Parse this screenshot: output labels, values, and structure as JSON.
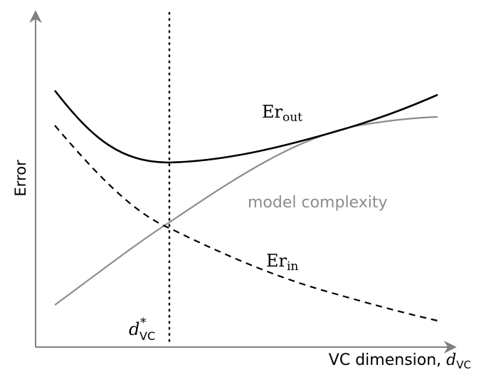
{
  "axes": {
    "y_label": "Error",
    "x_label_text": "VC dimension, ",
    "x_label_var": "d",
    "x_label_sub": "VC"
  },
  "curves": {
    "out_label_base": "Er",
    "out_label_sub": "out",
    "in_label_base": "Er",
    "in_label_sub": "in",
    "complexity_label": "model complexity"
  },
  "marker": {
    "var": "d",
    "sup": "*",
    "sub": "VC"
  },
  "colors": {
    "axis": "#808080",
    "out_curve": "#000000",
    "in_curve": "#000000",
    "complexity_curve": "#8c8c8c",
    "marker_line": "#000000"
  }
}
